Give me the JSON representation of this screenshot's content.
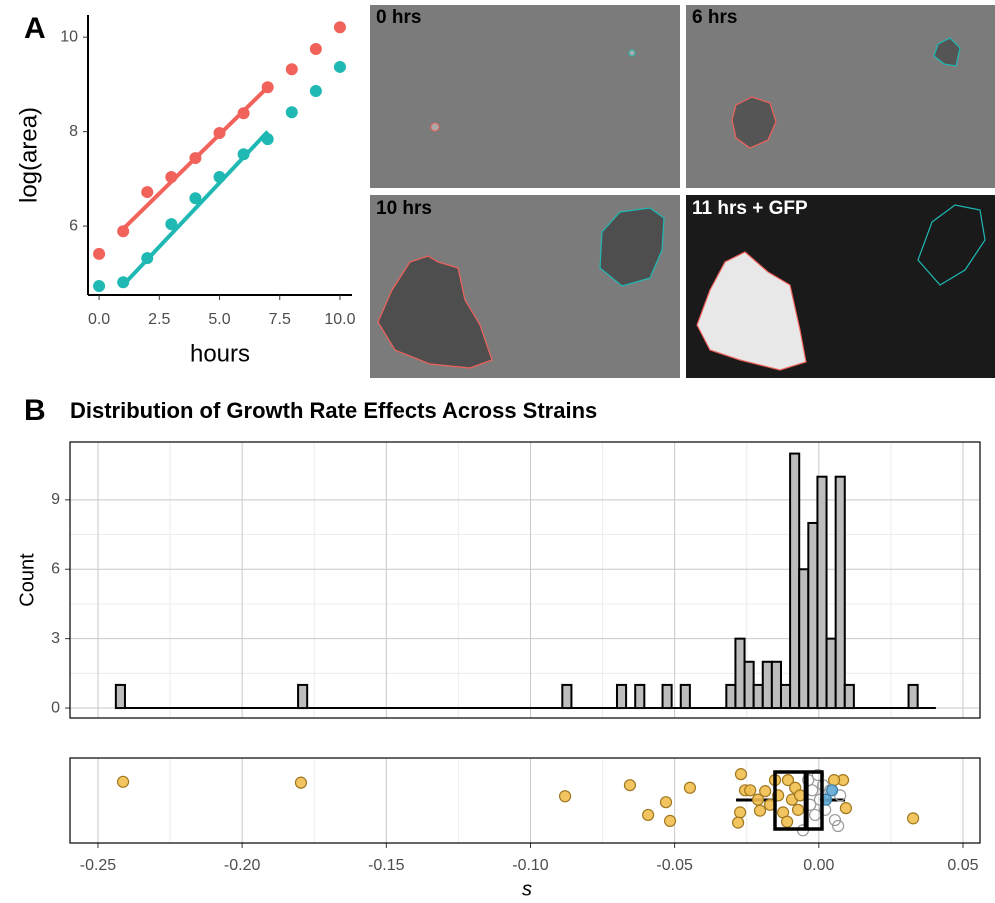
{
  "panel_labels": [
    "A",
    "B"
  ],
  "images": [
    {
      "label": "0 hrs"
    },
    {
      "label": "6 hrs"
    },
    {
      "label": "10 hrs"
    },
    {
      "label": "11 hrs + GFP"
    }
  ],
  "chart_data": [
    {
      "type": "scatter",
      "xlabel": "hours",
      "ylabel": "log(area)",
      "xlim": [
        -0.46,
        10.5
      ],
      "ylim": [
        4.54,
        10.47
      ],
      "xticks": [
        {
          "value": 0,
          "label": "0.0"
        },
        {
          "value": 2.5,
          "label": "2.5"
        },
        {
          "value": 5,
          "label": "5.0"
        },
        {
          "value": 7.5,
          "label": "7.5"
        },
        {
          "value": 10,
          "label": "10.0"
        }
      ],
      "yticks": [
        6,
        8,
        10
      ],
      "series": [
        {
          "color": "#f0625a",
          "x": [
            0,
            1,
            2,
            3,
            4,
            5,
            6,
            7,
            8,
            9,
            10
          ],
          "values": [
            5.41,
            5.89,
            6.72,
            7.04,
            7.44,
            7.97,
            8.39,
            8.94,
            9.32,
            9.75,
            10.21
          ]
        },
        {
          "color": "#1fb8b3",
          "x": [
            0,
            1,
            2,
            3,
            4,
            5,
            6,
            7,
            8,
            9,
            10
          ],
          "values": [
            4.73,
            4.81,
            5.32,
            6.04,
            6.59,
            7.04,
            7.52,
            7.84,
            8.41,
            8.86,
            9.37
          ]
        }
      ],
      "fit_lines": [
        {
          "color": "#f0625a",
          "x": [
            1,
            7
          ],
          "values": [
            5.94,
            8.94
          ]
        },
        {
          "color": "#1fb8b3",
          "x": [
            1,
            7
          ],
          "values": [
            4.75,
            8.0
          ]
        }
      ]
    },
    {
      "type": "histogram",
      "title": "Distribution of Growth Rate Effects Across Strains",
      "ylabel": "Count",
      "color": "#bdbdbd",
      "ylim": [
        -0.43,
        11.5
      ],
      "yticks": [
        0,
        3,
        6,
        9
      ],
      "grid": true,
      "bins": [
        -0.2438,
        -0.24064,
        -0.23748,
        -0.23432,
        -0.23116,
        -0.228,
        -0.22484,
        -0.22168,
        -0.21852,
        -0.21536,
        -0.2122,
        -0.20904,
        -0.20588,
        -0.20272,
        -0.19956,
        -0.1964,
        -0.19324,
        -0.19008,
        -0.18692,
        -0.18376,
        -0.1806,
        -0.17744,
        -0.17428,
        -0.17112,
        -0.16796,
        -0.1648,
        -0.16164,
        -0.15848,
        -0.15532,
        -0.15216,
        -0.149,
        -0.14584,
        -0.14268,
        -0.13952,
        -0.13636,
        -0.1332,
        -0.13004,
        -0.12688,
        -0.12372,
        -0.12056,
        -0.1174,
        -0.11424,
        -0.11108,
        -0.10792,
        -0.10476,
        -0.1016,
        -0.09844,
        -0.09528,
        -0.09212,
        -0.08896,
        -0.0858,
        -0.08264,
        -0.07948,
        -0.07632,
        -0.07316,
        -0.07,
        -0.06684,
        -0.06368,
        -0.06052,
        -0.05736,
        -0.0542,
        -0.05104,
        -0.04788,
        -0.04472,
        -0.04156,
        -0.0384,
        -0.03524,
        -0.03208,
        -0.02892,
        -0.02576,
        -0.0226,
        -0.01944,
        -0.01628,
        -0.01312,
        -0.00996,
        -0.0068,
        -0.00364,
        -0.00048,
        0.00268,
        0.00584,
        0.009,
        0.01216,
        0.01532,
        0.01848,
        0.02164,
        0.0248,
        0.02796,
        0.03112,
        0.03428,
        0.03744,
        0.0406
      ],
      "counts": [
        1,
        0,
        0,
        0,
        0,
        0,
        0,
        0,
        0,
        0,
        0,
        0,
        0,
        0,
        0,
        0,
        0,
        0,
        0,
        0,
        1,
        0,
        0,
        0,
        0,
        0,
        0,
        0,
        0,
        0,
        0,
        0,
        0,
        0,
        0,
        0,
        0,
        0,
        0,
        0,
        0,
        0,
        0,
        0,
        0,
        0,
        0,
        0,
        0,
        1,
        0,
        0,
        0,
        0,
        0,
        1,
        0,
        1,
        0,
        0,
        1,
        0,
        1,
        0,
        0,
        0,
        0,
        1,
        3,
        2,
        1,
        2,
        2,
        1,
        11,
        6,
        8,
        10,
        3,
        10,
        1,
        0,
        0,
        0,
        0,
        0,
        0,
        1,
        0,
        0
      ]
    },
    {
      "type": "strip",
      "xlabel": "s",
      "xlim": [
        -0.2597,
        0.0559
      ],
      "ylim": [
        0,
        1
      ],
      "grid": true,
      "xticks": [
        -0.25,
        {
          "value": -0.2,
          "label": "-0.20"
        },
        -0.15,
        {
          "value": -0.1,
          "label": "-0.10"
        },
        -0.05,
        {
          "value": 0,
          "label": "0.00"
        },
        0.05
      ],
      "series": [
        {
          "color": "#f2bf4f",
          "edge": "#a07820",
          "filled": true,
          "x": [
            -0.2413,
            -0.1796,
            -0.088,
            -0.0655,
            -0.0592,
            -0.053,
            -0.0516,
            -0.0447,
            0.0327,
            -0.027,
            -0.0256,
            -0.0273,
            -0.028,
            -0.0238,
            -0.0211,
            -0.0186,
            -0.0169,
            -0.0141,
            -0.0124,
            -0.0107,
            -0.0093,
            -0.0082,
            -0.0072,
            -0.011,
            -0.0204,
            -0.0152,
            -0.0065,
            0.0084,
            0.0094,
            0.0053
          ],
          "values": [
            0.72,
            0.71,
            0.55,
            0.68,
            0.33,
            0.48,
            0.26,
            0.65,
            0.29,
            0.81,
            0.62,
            0.36,
            0.24,
            0.62,
            0.51,
            0.61,
            0.45,
            0.56,
            0.36,
            0.74,
            0.51,
            0.65,
            0.39,
            0.25,
            0.38,
            0.74,
            0.56,
            0.74,
            0.41,
            0.74
          ]
        },
        {
          "color": "#999999",
          "edge": "#999999",
          "filled": false,
          "x": [
            -0.0037,
            -0.0023,
            -0.0003,
            0.0004,
            0.0022,
            0.0039,
            0.0056,
            0.0067,
            -0.0013,
            -0.003,
            0.0015,
            0.0074,
            -0.0055
          ],
          "values": [
            0.74,
            0.62,
            0.8,
            0.51,
            0.39,
            0.62,
            0.27,
            0.2,
            0.33,
            0.45,
            0.68,
            0.56,
            0.15
          ]
        },
        {
          "color": "#5fa8d3",
          "edge": "#3d7fa8",
          "filled": true,
          "x": [
            0.0046,
            0.0025
          ],
          "values": [
            0.62,
            0.51
          ]
        }
      ],
      "boxplot": {
        "low": -0.0287,
        "q1": -0.0152,
        "median": -0.0044,
        "q3": 0.0011,
        "high": 0.0091
      }
    }
  ]
}
